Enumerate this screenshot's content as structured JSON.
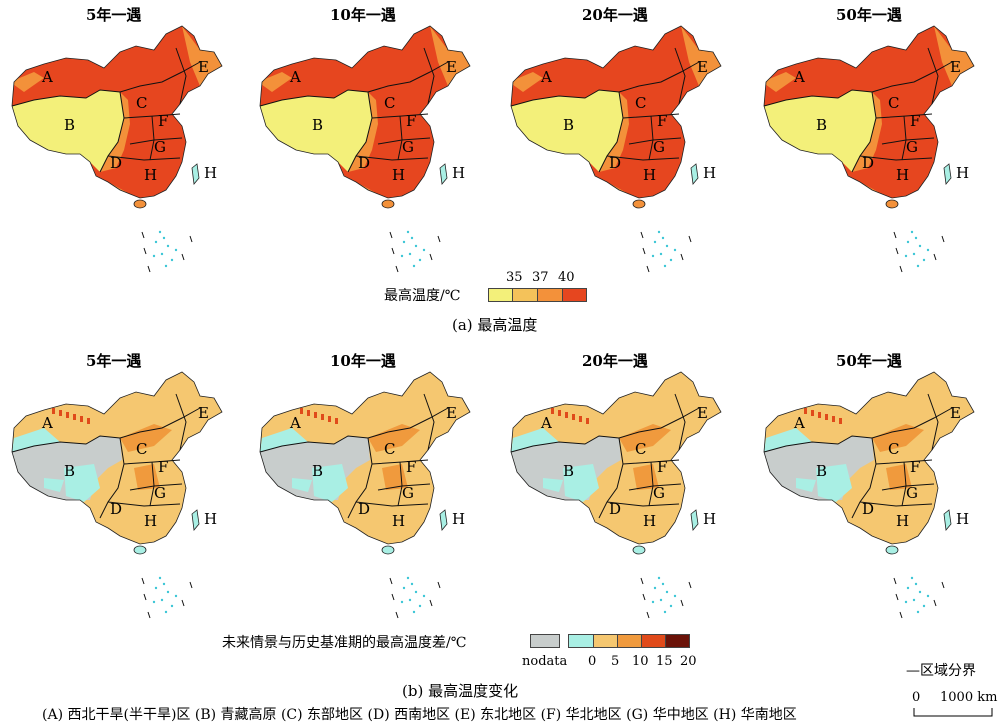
{
  "panel_a": {
    "titles": [
      "5年一遇",
      "10年一遇",
      "20年一遇",
      "50年一遇"
    ],
    "legend_label": "最高温度/℃",
    "legend_ticks": [
      "35",
      "37",
      "40"
    ],
    "legend_colors": [
      "#f3f07a",
      "#f4c25a",
      "#f3913a",
      "#e6461f"
    ],
    "caption": "(a) 最高温度"
  },
  "panel_b": {
    "titles": [
      "5年一遇",
      "10年一遇",
      "20年一遇",
      "50年一遇"
    ],
    "legend_label": "未来情景与历史基准期的最高温度差/℃",
    "nodata_label": "nodata",
    "nodata_color": "#c8cdcc",
    "legend_ticks": [
      "0",
      "5",
      "10",
      "15",
      "20"
    ],
    "legend_colors": [
      "#a9efe4",
      "#f5c770",
      "#f09a3d",
      "#e04a1a",
      "#6a1208"
    ],
    "caption": "(b) 最高温度变化"
  },
  "region_labels": [
    "A",
    "B",
    "C",
    "D",
    "E",
    "F",
    "G",
    "H"
  ],
  "region_list": "(A) 西北干旱(半干旱)区  (B) 青藏高原  (C) 东部地区  (D) 西南地区  (E) 东北地区  (F) 华北地区  (G) 华中地区  (H) 华南地区",
  "boundary_key": "—区域分界",
  "scale": {
    "zero": "0",
    "length": "1000 km"
  }
}
